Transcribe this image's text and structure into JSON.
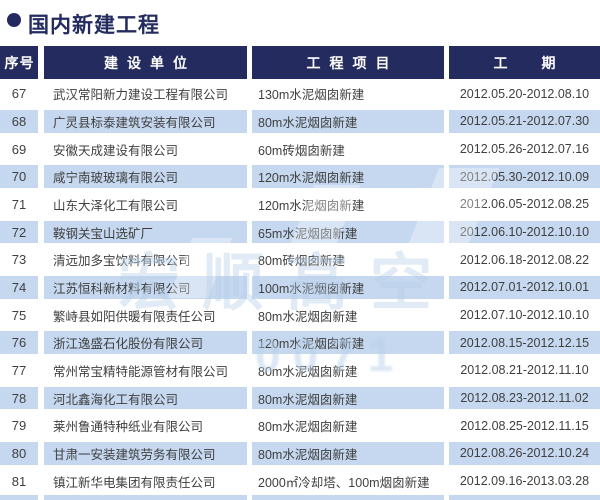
{
  "page_title": "国内新建工程",
  "icons": {
    "title_bullet": "filled-circle"
  },
  "colors": {
    "navy": "#242b5e",
    "row_blue": "#c5d8ef",
    "text": "#3f3f3f",
    "watermark": "#b9d0e9"
  },
  "watermark": {
    "line1": "宏顺高空",
    "line2": "0071"
  },
  "table": {
    "columns": [
      "序号",
      "建设单位",
      "工程项目",
      "工期"
    ],
    "rows": [
      {
        "no": "67",
        "company": "武汉常阳新力建设工程有限公司",
        "project": "130m水泥烟囱新建",
        "period": "2012.05.20-2012.08.10"
      },
      {
        "no": "68",
        "company": "广灵县标泰建筑安装有限公司",
        "project": "80m水泥烟囱新建",
        "period": "2012.05.21-2012.07.30"
      },
      {
        "no": "69",
        "company": "安徽天成建设有限公司",
        "project": "60m砖烟囱新建",
        "period": "2012.05.26-2012.07.16"
      },
      {
        "no": "70",
        "company": "咸宁南玻玻璃有限公司",
        "project": "120m水泥烟囱新建",
        "period": "2012.05.30-2012.10.09"
      },
      {
        "no": "71",
        "company": "山东大泽化工有限公司",
        "project": "120m水泥烟囱新建",
        "period": "2012.06.05-2012.08.25"
      },
      {
        "no": "72",
        "company": "鞍钢关宝山选矿厂",
        "project": "65m水泥烟囱新建",
        "period": "2012.06.10-2012.10.10"
      },
      {
        "no": "73",
        "company": "清远加多宝饮料有限公司",
        "project": "80m砖烟囱新建",
        "period": "2012.06.18-2012.08.22"
      },
      {
        "no": "74",
        "company": "江苏恒科新材料有限公司",
        "project": "100m水泥烟囱新建",
        "period": "2012.07.01-2012.10.01"
      },
      {
        "no": "75",
        "company": "繁峙县如阳供暖有限责任公司",
        "project": "80m水泥烟囱新建",
        "period": "2012.07.10-2012.10.10"
      },
      {
        "no": "76",
        "company": "浙江逸盛石化股份有限公司",
        "project": "120m水泥烟囱新建",
        "period": "2012.08.15-2012.12.15"
      },
      {
        "no": "77",
        "company": "常州常宝精特能源管材有限公司",
        "project": "80m水泥烟囱新建",
        "period": "2012.08.21-2012.11.10"
      },
      {
        "no": "78",
        "company": "河北鑫海化工有限公司",
        "project": "80m水泥烟囱新建",
        "period": "2012.08.23-2012.11.02"
      },
      {
        "no": "79",
        "company": "莱州鲁通特种纸业有限公司",
        "project": "80m水泥烟囱新建",
        "period": "2012.08.25-2012.11.15"
      },
      {
        "no": "80",
        "company": "甘肃一安装建筑劳务有限公司",
        "project": "80m水泥烟囱新建",
        "period": "2012.08.26-2012.10.24"
      },
      {
        "no": "81",
        "company": "镇江新华电集团有限责任公司",
        "project": "2000㎡冷却塔、100m烟囱新建",
        "period": "2012.09.16-2013.03.28"
      }
    ]
  }
}
